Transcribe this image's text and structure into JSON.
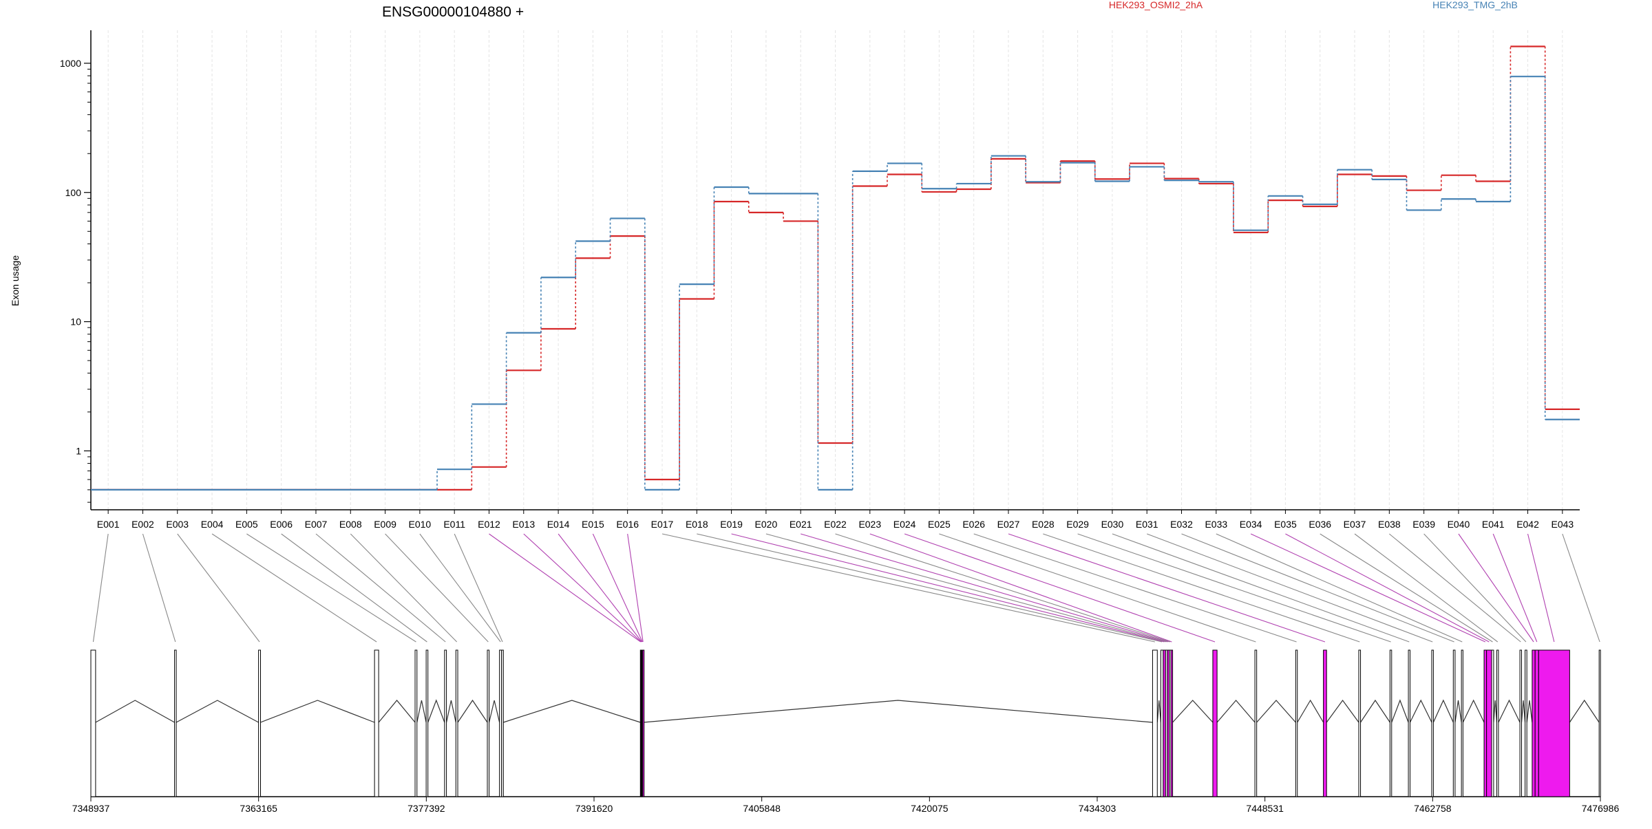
{
  "chart_data": {
    "type": "line",
    "title": "ENSG00000104880 +",
    "ylabel": "Exon usage",
    "xlabel": "",
    "y_scale": "log",
    "ylim": [
      0.35,
      1800
    ],
    "y_ticks": [
      1,
      10,
      100,
      1000
    ],
    "y_tick_labels": [
      "1",
      "10",
      "100",
      "1000"
    ],
    "grid": "vertical dashed at exon centers",
    "legend_placement": "top",
    "categories": [
      "E001",
      "E002",
      "E003",
      "E004",
      "E005",
      "E006",
      "E007",
      "E008",
      "E009",
      "E010",
      "E011",
      "E012",
      "E013",
      "E014",
      "E015",
      "E016",
      "E017",
      "E018",
      "E019",
      "E020",
      "E021",
      "E022",
      "E023",
      "E024",
      "E025",
      "E026",
      "E027",
      "E028",
      "E029",
      "E030",
      "E031",
      "E032",
      "E033",
      "E034",
      "E035",
      "E036",
      "E037",
      "E038",
      "E039",
      "E040",
      "E041",
      "E042",
      "E043"
    ],
    "series": [
      {
        "name": "HEK293_OSMI2_2hA",
        "color": "#d62728",
        "values": [
          0.5,
          0.5,
          0.5,
          0.5,
          0.5,
          0.5,
          0.5,
          0.5,
          0.5,
          0.5,
          0.5,
          0.75,
          4.2,
          8.8,
          31,
          46,
          0.6,
          15,
          85,
          70,
          60,
          1.15,
          112,
          138,
          101,
          106,
          182,
          119,
          175,
          127,
          168,
          128,
          117,
          49,
          87,
          78,
          138,
          134,
          104,
          136,
          122,
          1350,
          2.1
        ]
      },
      {
        "name": "HEK293_TMG_2hB",
        "color": "#4682b4",
        "values": [
          0.5,
          0.5,
          0.5,
          0.5,
          0.5,
          0.5,
          0.5,
          0.5,
          0.5,
          0.5,
          0.72,
          2.3,
          8.2,
          22,
          42,
          63,
          0.5,
          19.5,
          110,
          98,
          98,
          0.5,
          146,
          168,
          107,
          117,
          192,
          121,
          170,
          122,
          158,
          124,
          121,
          51,
          94,
          81,
          150,
          126,
          73,
          89,
          85,
          790,
          1.75
        ]
      }
    ],
    "genomic_axis": {
      "tick_labels": [
        "7348937",
        "7363165",
        "7377392",
        "7391620",
        "7405848",
        "7420075",
        "7434303",
        "7448531",
        "7462758",
        "7476986"
      ],
      "range": [
        7348937,
        7476986
      ]
    },
    "exon_model": {
      "highlight_color": "#ee1aee",
      "exons": [
        {
          "id": "E001",
          "start": 7348937,
          "end": 7349340,
          "hl": false
        },
        {
          "id": "E002",
          "start": 7356035,
          "end": 7356180,
          "hl": false
        },
        {
          "id": "E003",
          "start": 7363160,
          "end": 7363330,
          "hl": false
        },
        {
          "id": "E004",
          "start": 7373000,
          "end": 7373350,
          "hl": false
        },
        {
          "id": "E005",
          "start": 7376440,
          "end": 7376600,
          "hl": false
        },
        {
          "id": "E006",
          "start": 7377380,
          "end": 7377530,
          "hl": false
        },
        {
          "id": "E007",
          "start": 7378940,
          "end": 7379100,
          "hl": false
        },
        {
          "id": "E008",
          "start": 7379900,
          "end": 7380060,
          "hl": false
        },
        {
          "id": "E009",
          "start": 7382570,
          "end": 7382720,
          "hl": false
        },
        {
          "id": "E010",
          "start": 7383600,
          "end": 7383780,
          "hl": false
        },
        {
          "id": "E011",
          "start": 7383780,
          "end": 7383930,
          "hl": false
        },
        {
          "id": "E012",
          "start": 7395550,
          "end": 7395600,
          "hl": true
        },
        {
          "id": "E013",
          "start": 7395600,
          "end": 7395650,
          "hl": true
        },
        {
          "id": "E014",
          "start": 7395650,
          "end": 7395700,
          "hl": true
        },
        {
          "id": "E015",
          "start": 7395700,
          "end": 7395750,
          "hl": true
        },
        {
          "id": "E016",
          "start": 7395750,
          "end": 7395800,
          "hl": true
        },
        {
          "id": "E017",
          "start": 7439000,
          "end": 7439400,
          "hl": false
        },
        {
          "id": "E018",
          "start": 7439700,
          "end": 7439900,
          "hl": false
        },
        {
          "id": "E019",
          "start": 7439900,
          "end": 7440100,
          "hl": true
        },
        {
          "id": "E020",
          "start": 7440100,
          "end": 7440250,
          "hl": false
        },
        {
          "id": "E021",
          "start": 7440250,
          "end": 7440420,
          "hl": true
        },
        {
          "id": "E022",
          "start": 7440420,
          "end": 7440560,
          "hl": false
        },
        {
          "id": "E023",
          "start": 7440560,
          "end": 7440700,
          "hl": true
        },
        {
          "id": "E024",
          "start": 7444110,
          "end": 7444470,
          "hl": true
        },
        {
          "id": "E025",
          "start": 7447680,
          "end": 7447830,
          "hl": false
        },
        {
          "id": "E026",
          "start": 7451140,
          "end": 7451280,
          "hl": false
        },
        {
          "id": "E027",
          "start": 7453490,
          "end": 7453760,
          "hl": true
        },
        {
          "id": "E028",
          "start": 7456490,
          "end": 7456640,
          "hl": false
        },
        {
          "id": "E029",
          "start": 7459140,
          "end": 7459280,
          "hl": false
        },
        {
          "id": "E030",
          "start": 7460700,
          "end": 7460840,
          "hl": false
        },
        {
          "id": "E031",
          "start": 7462680,
          "end": 7462820,
          "hl": false
        },
        {
          "id": "E032",
          "start": 7464510,
          "end": 7464660,
          "hl": false
        },
        {
          "id": "E033",
          "start": 7465200,
          "end": 7465330,
          "hl": false
        },
        {
          "id": "E034",
          "start": 7467120,
          "end": 7467330,
          "hl": true
        },
        {
          "id": "E035",
          "start": 7467330,
          "end": 7467760,
          "hl": true
        },
        {
          "id": "E036",
          "start": 7467760,
          "end": 7467930,
          "hl": false
        },
        {
          "id": "E037",
          "start": 7468200,
          "end": 7468340,
          "hl": false
        },
        {
          "id": "E038",
          "start": 7470160,
          "end": 7470300,
          "hl": false
        },
        {
          "id": "E039",
          "start": 7470600,
          "end": 7470750,
          "hl": false
        },
        {
          "id": "E040",
          "start": 7471200,
          "end": 7471450,
          "hl": true
        },
        {
          "id": "E041",
          "start": 7471450,
          "end": 7471750,
          "hl": true
        },
        {
          "id": "E042",
          "start": 7471750,
          "end": 7474380,
          "hl": true
        },
        {
          "id": "E043",
          "start": 7476880,
          "end": 7476986,
          "hl": false
        }
      ]
    }
  }
}
